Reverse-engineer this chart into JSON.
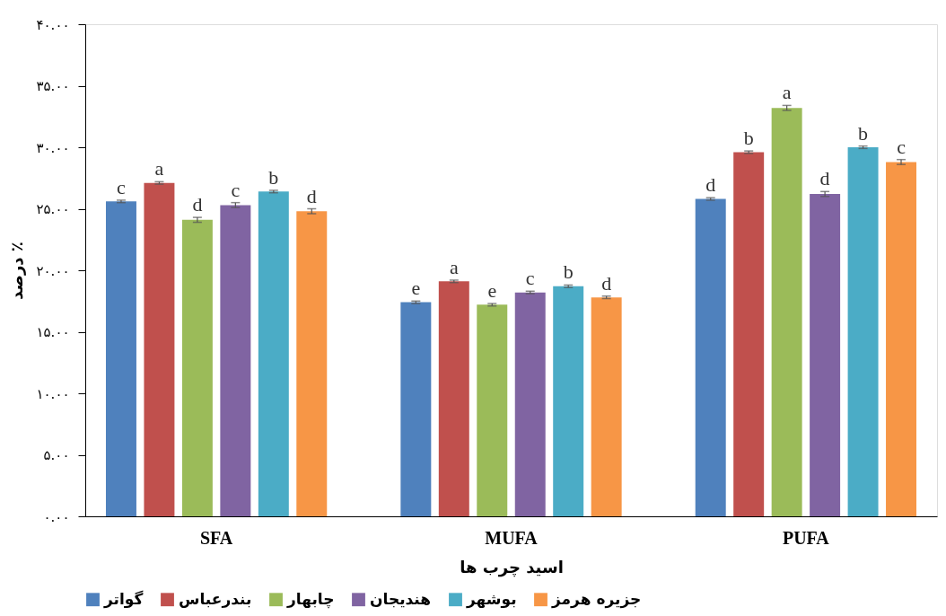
{
  "chart_data": {
    "type": "bar",
    "xlabel": "اسید چرب ها",
    "ylabel": "درصد ٪",
    "categories": [
      "SFA",
      "MUFA",
      "PUFA"
    ],
    "series": [
      {
        "name": "گواتر",
        "color": "#4f81bd",
        "values": [
          25.6,
          17.4,
          25.8
        ],
        "errors": [
          0.1,
          0.1,
          0.1
        ],
        "value_labels": [
          "c",
          "e",
          "d"
        ]
      },
      {
        "name": "بندرعباس",
        "color": "#c0504d",
        "values": [
          27.1,
          19.1,
          29.6
        ],
        "errors": [
          0.1,
          0.1,
          0.1
        ],
        "value_labels": [
          "a",
          "a",
          "b"
        ]
      },
      {
        "name": "چابهار",
        "color": "#9bbb59",
        "values": [
          24.1,
          17.2,
          33.2
        ],
        "errors": [
          0.2,
          0.1,
          0.2
        ],
        "value_labels": [
          "d",
          "e",
          "a"
        ]
      },
      {
        "name": "هندیجان",
        "color": "#8064a2",
        "values": [
          25.3,
          18.2,
          26.2
        ],
        "errors": [
          0.2,
          0.1,
          0.2
        ],
        "value_labels": [
          "c",
          "c",
          "d"
        ]
      },
      {
        "name": "بوشهر",
        "color": "#4bacc6",
        "values": [
          26.4,
          18.7,
          30.0
        ],
        "errors": [
          0.1,
          0.1,
          0.1
        ],
        "value_labels": [
          "b",
          "b",
          "b"
        ]
      },
      {
        "name": "جزیره هرمز",
        "color": "#f79646",
        "values": [
          24.8,
          17.8,
          28.8
        ],
        "errors": [
          0.2,
          0.1,
          0.2
        ],
        "value_labels": [
          "d",
          "d",
          "c"
        ]
      }
    ],
    "ylim": [
      0,
      40
    ],
    "yticks": [
      {
        "value": 0,
        "label": "۰.۰۰"
      },
      {
        "value": 5,
        "label": "۵.۰۰"
      },
      {
        "value": 10,
        "label": "۱۰.۰۰"
      },
      {
        "value": 15,
        "label": "۱۵.۰۰"
      },
      {
        "value": 20,
        "label": "۲۰.۰۰"
      },
      {
        "value": 25,
        "label": "۲۵.۰۰"
      },
      {
        "value": 30,
        "label": "۳۰.۰۰"
      },
      {
        "value": 35,
        "label": "۳۵.۰۰"
      },
      {
        "value": 40,
        "label": "۴۰.۰۰"
      }
    ],
    "grid": false,
    "legend": "bottom"
  }
}
